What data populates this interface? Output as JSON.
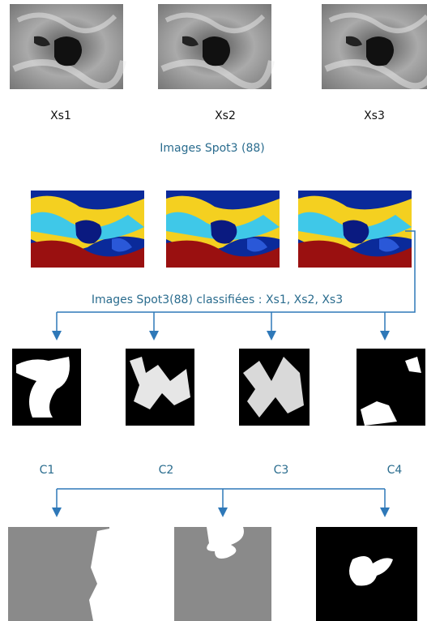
{
  "images": {
    "labels": [
      "Xs1",
      "Xs2",
      "Xs3"
    ],
    "caption": "Images Spot3 (88)"
  },
  "classified": {
    "caption": "Images Spot3(88) classifiées : Xs1, Xs2, Xs3"
  },
  "classes": {
    "labels": [
      "C1",
      "C2",
      "C3",
      "C4"
    ]
  }
}
